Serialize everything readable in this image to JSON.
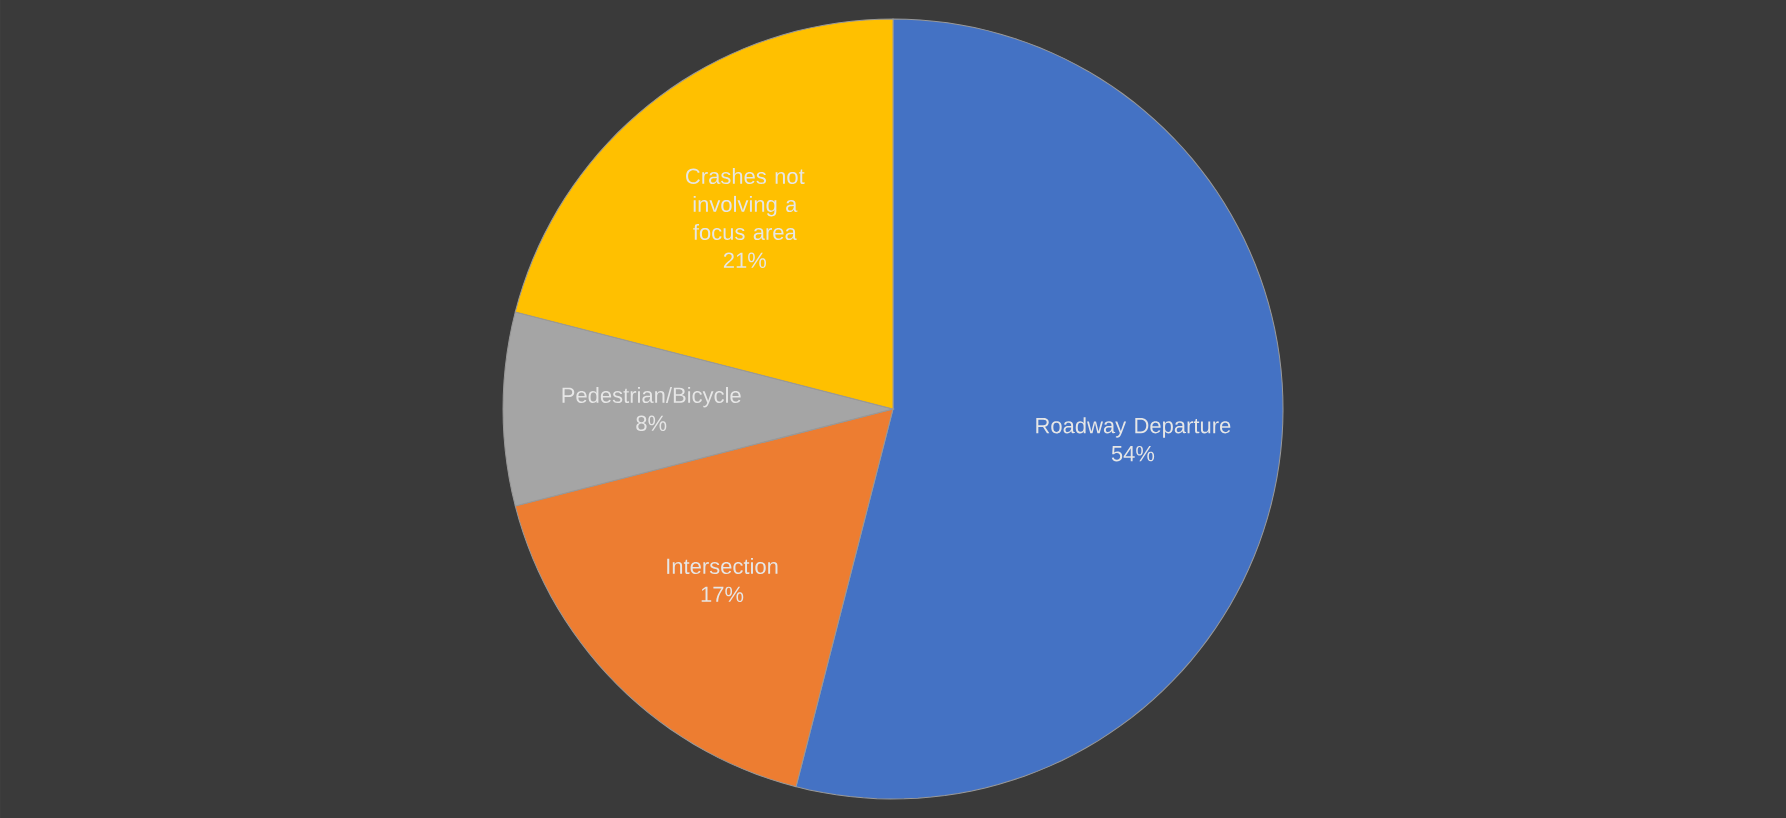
{
  "chart_data": {
    "type": "pie",
    "categories": [
      "Roadway Departure",
      "Intersection",
      "Pedestrian/Bicycle",
      "Crashes not involving a focus area"
    ],
    "values": [
      54,
      17,
      8,
      21
    ],
    "colors": [
      "#4472c4",
      "#ed7d31",
      "#a5a5a5",
      "#ffc000"
    ],
    "value_labels": [
      "54%",
      "17%",
      "8%",
      "21%"
    ]
  }
}
